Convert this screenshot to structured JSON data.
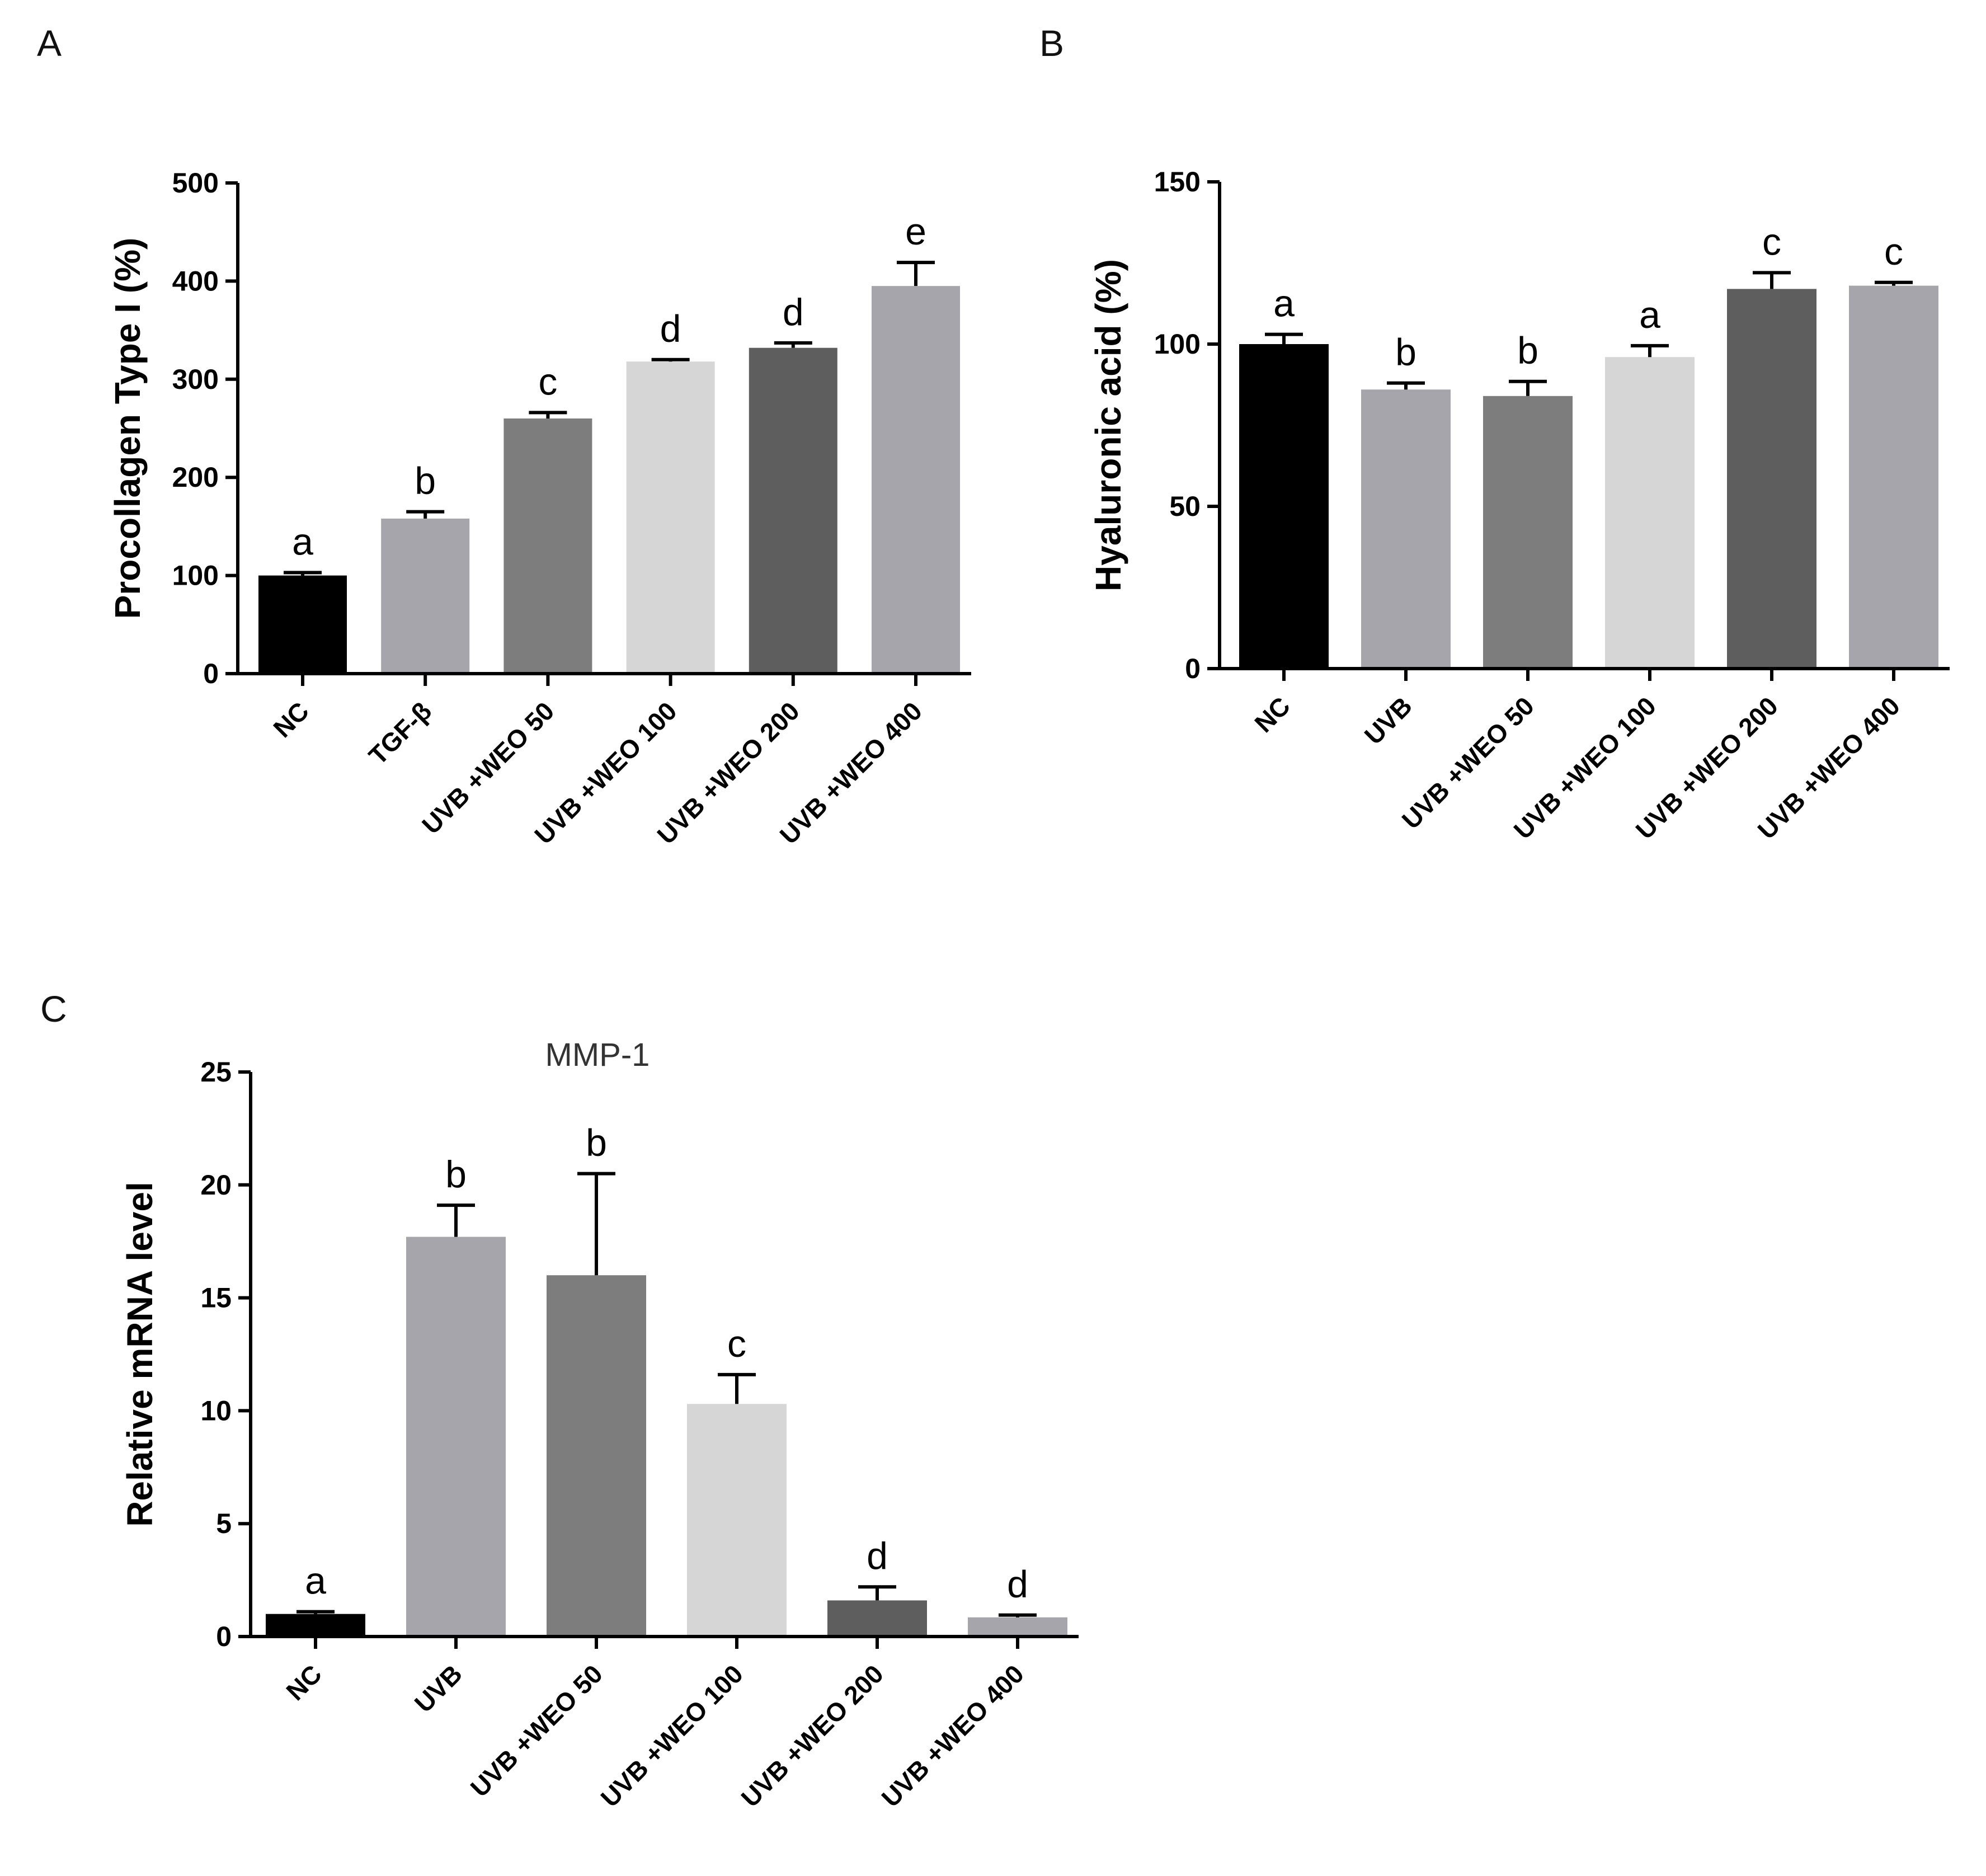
{
  "chart_data": [
    {
      "panel": "A",
      "type": "bar",
      "title": "",
      "xlabel": "",
      "ylabel": "Procollagen Type I (%)",
      "ylim": [
        0,
        500
      ],
      "yticks": [
        0,
        100,
        200,
        300,
        400,
        500
      ],
      "categories": [
        "NC",
        "TGF-β",
        "UVB +WEO 50",
        "UVB +WEO 100",
        "UVB +WEO 200",
        "UVB +WEO 400"
      ],
      "values": [
        100,
        158,
        260,
        318,
        332,
        395
      ],
      "errors": [
        3,
        7,
        6,
        2,
        5,
        24
      ],
      "significance": [
        "a",
        "b",
        "c",
        "d",
        "d",
        "e"
      ],
      "colors": [
        "#000000",
        "#a6a5ab",
        "#7d7d7d",
        "#d6d6d6",
        "#5e5e5e",
        "#a6a5ab"
      ]
    },
    {
      "panel": "B",
      "type": "bar",
      "title": "",
      "xlabel": "",
      "ylabel": "Hyaluronic acid (%)",
      "ylim": [
        0,
        150
      ],
      "yticks": [
        0,
        50,
        100,
        150
      ],
      "categories": [
        "NC",
        "UVB",
        "UVB +WEO 50",
        "UVB +WEO 100",
        "UVB +WEO 200",
        "UVB +WEO 400"
      ],
      "values": [
        100,
        86,
        84,
        96,
        117,
        118
      ],
      "errors": [
        3,
        2,
        4.5,
        3.5,
        5,
        1
      ],
      "significance": [
        "a",
        "b",
        "b",
        "a",
        "c",
        "c"
      ],
      "colors": [
        "#000000",
        "#a6a5ab",
        "#7d7d7d",
        "#d6d6d6",
        "#5e5e5e",
        "#a6a5ab"
      ]
    },
    {
      "panel": "C",
      "type": "bar",
      "title": "MMP-1",
      "xlabel": "",
      "ylabel": "Relative mRNA level",
      "ylim": [
        0,
        25
      ],
      "yticks": [
        0,
        5,
        10,
        15,
        20,
        25
      ],
      "categories": [
        "NC",
        "UVB",
        "UVB +WEO 50",
        "UVB +WEO 100",
        "UVB +WEO 200",
        "UVB +WEO 400"
      ],
      "values": [
        1.0,
        17.7,
        16.0,
        10.3,
        1.6,
        0.85
      ],
      "errors": [
        0.1,
        1.4,
        4.5,
        1.3,
        0.6,
        0.1
      ],
      "significance": [
        "a",
        "b",
        "b",
        "c",
        "d",
        "d"
      ],
      "colors": [
        "#000000",
        "#a6a5ab",
        "#7d7d7d",
        "#d6d6d6",
        "#5e5e5e",
        "#a6a5ab"
      ]
    }
  ]
}
